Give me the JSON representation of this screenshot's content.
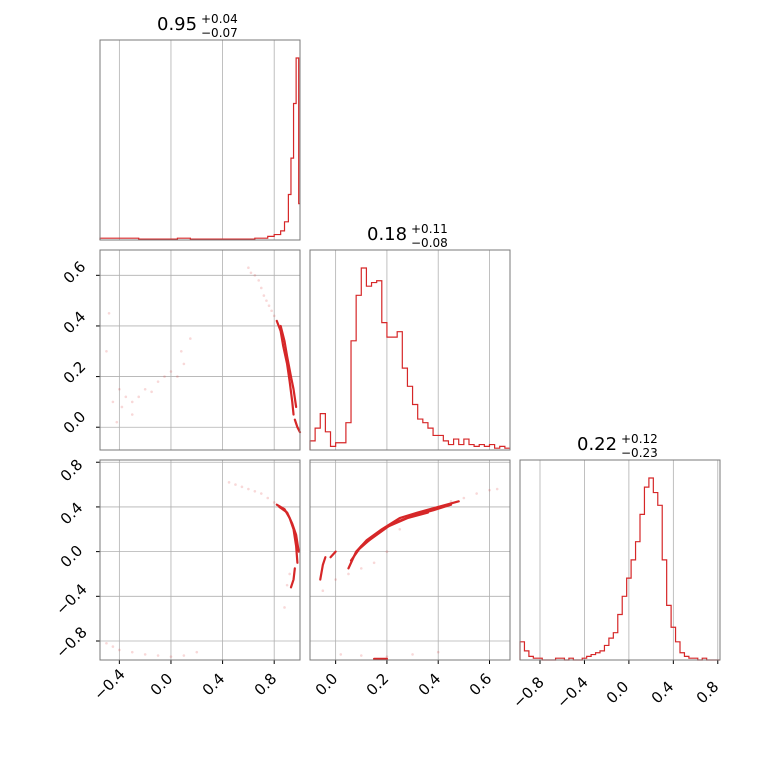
{
  "figure": {
    "type": "corner-plot",
    "line_color": "#d62728",
    "grid_color": "#b0b0b0"
  },
  "chart_data": [
    {
      "type": "histogram",
      "panel": "diag-0",
      "title": {
        "value": "0.95",
        "plus": "+0.04",
        "minus": "−0.07"
      },
      "xlim": [
        -0.55,
        1.0
      ],
      "edges": [
        -0.55,
        -0.5,
        -0.45,
        -0.4,
        -0.35,
        -0.3,
        -0.25,
        -0.2,
        -0.15,
        -0.1,
        -0.05,
        0.0,
        0.05,
        0.1,
        0.15,
        0.2,
        0.25,
        0.3,
        0.35,
        0.4,
        0.45,
        0.5,
        0.55,
        0.6,
        0.65,
        0.7,
        0.75,
        0.8,
        0.85,
        0.88,
        0.91,
        0.93,
        0.95,
        0.97,
        0.99,
        1.0
      ],
      "counts": [
        0.01,
        0.01,
        0.01,
        0.01,
        0.01,
        0.01,
        0.005,
        0.005,
        0.005,
        0.005,
        0.005,
        0.005,
        0.01,
        0.01,
        0.005,
        0.005,
        0.005,
        0.005,
        0.005,
        0.005,
        0.005,
        0.005,
        0.005,
        0.005,
        0.01,
        0.01,
        0.02,
        0.03,
        0.05,
        0.1,
        0.25,
        0.45,
        0.75,
        1.0,
        0.2
      ]
    },
    {
      "type": "histogram",
      "panel": "diag-1",
      "title": {
        "value": "0.18",
        "plus": "+0.11",
        "minus": "−0.08"
      },
      "xlim": [
        -0.1,
        0.68
      ],
      "edges": [
        -0.1,
        -0.08,
        -0.06,
        -0.04,
        -0.02,
        0.0,
        0.02,
        0.04,
        0.06,
        0.08,
        0.1,
        0.12,
        0.14,
        0.16,
        0.18,
        0.2,
        0.22,
        0.24,
        0.26,
        0.28,
        0.3,
        0.32,
        0.34,
        0.36,
        0.38,
        0.4,
        0.42,
        0.44,
        0.46,
        0.48,
        0.5,
        0.52,
        0.54,
        0.56,
        0.58,
        0.6,
        0.62,
        0.64,
        0.66,
        0.68
      ],
      "counts": [
        0.05,
        0.12,
        0.2,
        0.1,
        0.02,
        0.04,
        0.04,
        0.15,
        0.6,
        0.85,
        1.0,
        0.9,
        0.92,
        0.93,
        0.7,
        0.62,
        0.62,
        0.65,
        0.45,
        0.35,
        0.25,
        0.17,
        0.15,
        0.12,
        0.08,
        0.08,
        0.05,
        0.03,
        0.06,
        0.03,
        0.06,
        0.03,
        0.02,
        0.03,
        0.02,
        0.03,
        0.01,
        0.02,
        0.01
      ]
    },
    {
      "type": "histogram",
      "panel": "diag-2",
      "title": {
        "value": "0.22",
        "plus": "+0.12",
        "minus": "−0.23"
      },
      "xlim": [
        -0.98,
        0.82
      ],
      "edges": [
        -0.98,
        -0.94,
        -0.9,
        -0.86,
        -0.82,
        -0.78,
        -0.74,
        -0.7,
        -0.66,
        -0.62,
        -0.58,
        -0.54,
        -0.5,
        -0.46,
        -0.42,
        -0.38,
        -0.34,
        -0.3,
        -0.26,
        -0.22,
        -0.18,
        -0.14,
        -0.1,
        -0.06,
        -0.02,
        0.02,
        0.06,
        0.1,
        0.14,
        0.18,
        0.22,
        0.26,
        0.3,
        0.34,
        0.38,
        0.42,
        0.46,
        0.5,
        0.54,
        0.58,
        0.62,
        0.66,
        0.7,
        0.74,
        0.78,
        0.82
      ],
      "counts": [
        0.1,
        0.05,
        0.02,
        0.01,
        0.01,
        0.0,
        0.0,
        0.0,
        0.01,
        0.01,
        0.0,
        0.01,
        0.0,
        0.0,
        0.01,
        0.02,
        0.03,
        0.04,
        0.05,
        0.08,
        0.12,
        0.15,
        0.25,
        0.35,
        0.45,
        0.55,
        0.65,
        0.8,
        0.95,
        1.0,
        0.92,
        0.85,
        0.55,
        0.3,
        0.18,
        0.1,
        0.04,
        0.02,
        0.01,
        0.01,
        0.0,
        0.01,
        0.0,
        0.0,
        0.0
      ]
    },
    {
      "type": "scatter",
      "panel": "offdiag-1-0",
      "xlim": [
        -0.55,
        1.0
      ],
      "ylim": [
        -0.09,
        0.7
      ],
      "points": [
        [
          0.6,
          0.63
        ],
        [
          0.62,
          0.61
        ],
        [
          0.65,
          0.6
        ],
        [
          0.68,
          0.58
        ],
        [
          0.7,
          0.55
        ],
        [
          0.72,
          0.52
        ],
        [
          0.74,
          0.5
        ],
        [
          0.76,
          0.48
        ],
        [
          0.78,
          0.46
        ],
        [
          0.8,
          0.44
        ],
        [
          -0.45,
          0.1
        ],
        [
          -0.4,
          0.15
        ],
        [
          -0.35,
          0.12
        ],
        [
          -0.3,
          0.1
        ],
        [
          -0.25,
          0.12
        ],
        [
          -0.2,
          0.15
        ],
        [
          -0.15,
          0.14
        ],
        [
          -0.1,
          0.18
        ],
        [
          -0.05,
          0.2
        ],
        [
          0.0,
          0.22
        ],
        [
          0.05,
          0.2
        ],
        [
          0.1,
          0.25
        ],
        [
          -0.5,
          0.3
        ],
        [
          -0.48,
          0.45
        ],
        [
          -0.42,
          0.02
        ],
        [
          -0.38,
          0.08
        ],
        [
          -0.3,
          0.05
        ],
        [
          0.08,
          0.3
        ],
        [
          0.15,
          0.35
        ]
      ],
      "contours": [
        [
          [
            0.82,
            0.42
          ],
          [
            0.85,
            0.38
          ],
          [
            0.87,
            0.32
          ],
          [
            0.9,
            0.25
          ],
          [
            0.92,
            0.18
          ],
          [
            0.94,
            0.1
          ],
          [
            0.95,
            0.05
          ]
        ],
        [
          [
            0.85,
            0.4
          ],
          [
            0.88,
            0.34
          ],
          [
            0.9,
            0.28
          ],
          [
            0.93,
            0.2
          ],
          [
            0.95,
            0.15
          ],
          [
            0.97,
            0.08
          ]
        ],
        [
          [
            0.96,
            0.03
          ],
          [
            0.98,
            0.0
          ],
          [
            1.0,
            -0.02
          ]
        ]
      ]
    },
    {
      "type": "scatter",
      "panel": "offdiag-2-0",
      "xlim": [
        -0.55,
        1.0
      ],
      "ylim": [
        -0.97,
        0.82
      ],
      "points": [
        [
          0.45,
          0.62
        ],
        [
          0.5,
          0.6
        ],
        [
          0.55,
          0.58
        ],
        [
          0.6,
          0.56
        ],
        [
          0.65,
          0.54
        ],
        [
          0.7,
          0.52
        ],
        [
          0.75,
          0.48
        ],
        [
          0.8,
          0.44
        ],
        [
          -0.5,
          -0.82
        ],
        [
          -0.45,
          -0.85
        ],
        [
          -0.4,
          -0.88
        ],
        [
          -0.3,
          -0.9
        ],
        [
          -0.2,
          -0.92
        ],
        [
          -0.1,
          -0.93
        ],
        [
          0.0,
          -0.94
        ],
        [
          0.1,
          -0.93
        ],
        [
          0.2,
          -0.9
        ],
        [
          0.9,
          -0.3
        ],
        [
          0.92,
          -0.2
        ],
        [
          0.88,
          -0.5
        ]
      ],
      "contours": [
        [
          [
            0.82,
            0.42
          ],
          [
            0.88,
            0.38
          ],
          [
            0.92,
            0.3
          ],
          [
            0.95,
            0.2
          ],
          [
            0.97,
            0.05
          ],
          [
            0.98,
            -0.1
          ]
        ],
        [
          [
            0.84,
            0.4
          ],
          [
            0.9,
            0.35
          ],
          [
            0.94,
            0.25
          ],
          [
            0.97,
            0.15
          ],
          [
            0.99,
            0.0
          ]
        ],
        [
          [
            0.96,
            -0.15
          ],
          [
            0.95,
            -0.25
          ],
          [
            0.93,
            -0.32
          ]
        ]
      ]
    },
    {
      "type": "scatter",
      "panel": "offdiag-2-1",
      "xlim": [
        -0.1,
        0.68
      ],
      "ylim": [
        -0.97,
        0.82
      ],
      "points": [
        [
          0.5,
          0.48
        ],
        [
          0.55,
          0.52
        ],
        [
          0.6,
          0.55
        ],
        [
          0.63,
          0.56
        ],
        [
          0.45,
          0.45
        ],
        [
          0.3,
          0.32
        ],
        [
          0.25,
          0.2
        ],
        [
          0.2,
          0.0
        ],
        [
          0.15,
          -0.1
        ],
        [
          0.1,
          -0.15
        ],
        [
          0.05,
          -0.2
        ],
        [
          0.0,
          -0.25
        ],
        [
          -0.05,
          -0.35
        ],
        [
          0.02,
          -0.92
        ],
        [
          0.1,
          -0.93
        ],
        [
          0.2,
          -0.94
        ],
        [
          0.3,
          -0.92
        ],
        [
          0.4,
          -0.9
        ]
      ],
      "contours": [
        [
          [
            0.05,
            -0.15
          ],
          [
            0.08,
            0.0
          ],
          [
            0.12,
            0.1
          ],
          [
            0.18,
            0.2
          ],
          [
            0.25,
            0.3
          ],
          [
            0.32,
            0.35
          ],
          [
            0.4,
            0.4
          ],
          [
            0.48,
            0.45
          ]
        ],
        [
          [
            0.06,
            -0.08
          ],
          [
            0.1,
            0.05
          ],
          [
            0.16,
            0.15
          ],
          [
            0.22,
            0.25
          ],
          [
            0.3,
            0.32
          ],
          [
            0.38,
            0.37
          ],
          [
            0.45,
            0.42
          ]
        ],
        [
          [
            0.09,
            0.02
          ],
          [
            0.14,
            0.12
          ],
          [
            0.2,
            0.22
          ],
          [
            0.28,
            0.3
          ],
          [
            0.36,
            0.35
          ]
        ],
        [
          [
            -0.06,
            -0.25
          ],
          [
            -0.05,
            -0.12
          ],
          [
            -0.04,
            -0.05
          ]
        ],
        [
          [
            -0.02,
            -0.05
          ],
          [
            0.0,
            0.0
          ]
        ],
        [
          [
            0.15,
            -0.96
          ],
          [
            0.2,
            -0.96
          ]
        ]
      ]
    }
  ],
  "axes": {
    "row1_y_ticks": [
      "0.0",
      "0.2",
      "0.4",
      "0.6"
    ],
    "row2_y_ticks": [
      "−0.8",
      "−0.4",
      "0.0",
      "0.4",
      "0.8"
    ],
    "col0_x_ticks": [
      "−0.4",
      "0.0",
      "0.4",
      "0.8"
    ],
    "col1_x_ticks": [
      "0.0",
      "0.2",
      "0.4",
      "0.6"
    ],
    "col2_x_ticks": [
      "−0.8",
      "−0.4",
      "0.0",
      "0.4",
      "0.8"
    ]
  }
}
